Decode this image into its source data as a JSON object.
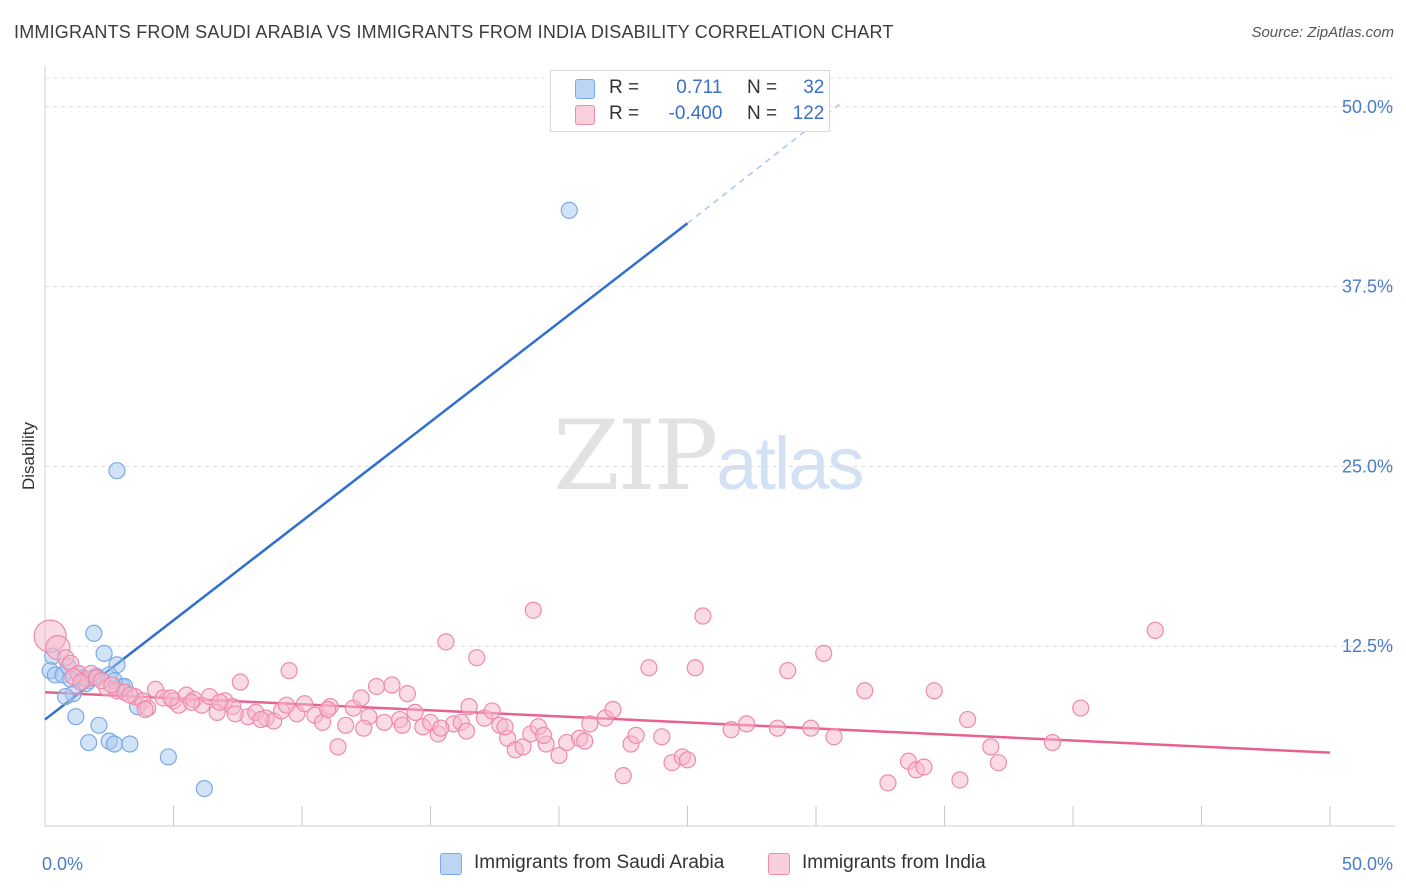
{
  "title": "IMMIGRANTS FROM SAUDI ARABIA VS IMMIGRANTS FROM INDIA DISABILITY CORRELATION CHART",
  "source": "Source: ZipAtlas.com",
  "watermark": {
    "zip": "ZIP",
    "atlas": "atlas"
  },
  "legend": {
    "rows": [
      {
        "r_label": "R =",
        "r_value": "0.711",
        "n_label": "N =",
        "n_value": "32",
        "color": "#a8c8f0"
      },
      {
        "r_label": "R =",
        "r_value": "-0.400",
        "n_label": "N =",
        "n_value": "122",
        "color": "#f6b8cb"
      }
    ]
  },
  "bottom_legend": {
    "saudi": "Immigrants from Saudi Arabia",
    "india": "Immigrants from India"
  },
  "chart_data": {
    "type": "scatter",
    "title": "IMMIGRANTS FROM SAUDI ARABIA VS IMMIGRANTS FROM INDIA DISABILITY CORRELATION CHART",
    "xlabel": "",
    "ylabel": "Disability",
    "xlim": [
      0,
      50
    ],
    "ylim": [
      0,
      52
    ],
    "x_tick_labels": [
      "0.0%",
      "50.0%"
    ],
    "y_ticks": [
      12.5,
      25.0,
      37.5,
      50.0
    ],
    "y_tick_labels": [
      "12.5%",
      "25.0%",
      "37.5%",
      "50.0%"
    ],
    "grid": true,
    "legend_position": "top-center",
    "series": [
      {
        "name": "Immigrants from Saudi Arabia",
        "color": "#7aaae6",
        "fill": "#a8c8f0",
        "line_color": "#2f6fcf",
        "r": 0.711,
        "n": 32,
        "trend": {
          "x0": 0,
          "y0": 7.4,
          "x1": 25,
          "y1": 41.9,
          "x_dash_end": 31,
          "y_dash_end": 50.3
        },
        "points": [
          [
            20.4,
            42.8
          ],
          [
            2.8,
            24.7
          ],
          [
            0.3,
            11.8
          ],
          [
            0.2,
            10.8
          ],
          [
            0.4,
            10.5
          ],
          [
            0.7,
            10.5
          ],
          [
            0.9,
            11.1
          ],
          [
            1.0,
            10.2
          ],
          [
            1.3,
            10.6
          ],
          [
            1.5,
            10.3
          ],
          [
            1.7,
            10.1
          ],
          [
            1.9,
            10.3
          ],
          [
            2.0,
            10.4
          ],
          [
            2.3,
            12.0
          ],
          [
            2.8,
            11.2
          ],
          [
            1.9,
            13.4
          ],
          [
            3.0,
            9.7
          ],
          [
            2.5,
            10.5
          ],
          [
            2.7,
            10.1
          ],
          [
            3.1,
            9.7
          ],
          [
            3.6,
            8.3
          ],
          [
            1.1,
            9.2
          ],
          [
            0.8,
            9.0
          ],
          [
            1.6,
            9.9
          ],
          [
            1.2,
            7.6
          ],
          [
            1.7,
            5.8
          ],
          [
            2.1,
            7.0
          ],
          [
            2.5,
            5.9
          ],
          [
            2.7,
            5.7
          ],
          [
            3.3,
            5.7
          ],
          [
            4.8,
            4.8
          ],
          [
            6.2,
            2.6
          ]
        ]
      },
      {
        "name": "Immigrants from India",
        "color": "#ee8aaa",
        "fill": "#f6b8cb",
        "line_color": "#e8628e",
        "r": -0.4,
        "n": 122,
        "trend": {
          "x0": 0,
          "y0": 9.3,
          "x1": 50,
          "y1": 5.1
        },
        "points": [
          [
            0.2,
            13.2
          ],
          [
            0.5,
            12.4
          ],
          [
            0.8,
            11.7
          ],
          [
            1.0,
            11.3
          ],
          [
            1.3,
            10.6
          ],
          [
            1.6,
            10.2
          ],
          [
            1.8,
            10.6
          ],
          [
            2.0,
            10.3
          ],
          [
            2.4,
            9.6
          ],
          [
            2.8,
            9.4
          ],
          [
            3.1,
            9.3
          ],
          [
            3.5,
            9.0
          ],
          [
            3.8,
            8.7
          ],
          [
            4.0,
            8.2
          ],
          [
            4.3,
            9.5
          ],
          [
            4.6,
            8.9
          ],
          [
            5.0,
            8.7
          ],
          [
            5.2,
            8.4
          ],
          [
            5.5,
            9.1
          ],
          [
            5.8,
            8.8
          ],
          [
            6.1,
            8.4
          ],
          [
            6.4,
            9.0
          ],
          [
            6.7,
            7.9
          ],
          [
            7.0,
            8.7
          ],
          [
            7.3,
            8.3
          ],
          [
            7.6,
            10.0
          ],
          [
            7.9,
            7.6
          ],
          [
            8.2,
            7.9
          ],
          [
            8.6,
            7.5
          ],
          [
            8.9,
            7.3
          ],
          [
            9.2,
            8.0
          ],
          [
            9.5,
            10.8
          ],
          [
            9.8,
            7.8
          ],
          [
            10.1,
            8.5
          ],
          [
            10.5,
            7.7
          ],
          [
            10.8,
            7.2
          ],
          [
            11.1,
            8.3
          ],
          [
            11.4,
            5.5
          ],
          [
            11.7,
            7.0
          ],
          [
            12.0,
            8.2
          ],
          [
            12.3,
            8.9
          ],
          [
            12.6,
            7.6
          ],
          [
            12.9,
            9.7
          ],
          [
            13.2,
            7.2
          ],
          [
            13.5,
            9.8
          ],
          [
            13.8,
            7.4
          ],
          [
            14.1,
            9.2
          ],
          [
            14.4,
            7.9
          ],
          [
            14.7,
            6.9
          ],
          [
            15.0,
            7.2
          ],
          [
            15.3,
            6.4
          ],
          [
            15.6,
            12.8
          ],
          [
            15.9,
            7.1
          ],
          [
            16.2,
            7.2
          ],
          [
            16.5,
            8.3
          ],
          [
            16.8,
            11.7
          ],
          [
            17.1,
            7.5
          ],
          [
            17.4,
            8.0
          ],
          [
            17.7,
            7.0
          ],
          [
            18.0,
            6.1
          ],
          [
            18.3,
            5.3
          ],
          [
            18.6,
            5.5
          ],
          [
            18.9,
            6.4
          ],
          [
            19.2,
            6.9
          ],
          [
            19.5,
            5.7
          ],
          [
            20.0,
            4.9
          ],
          [
            20.3,
            5.8
          ],
          [
            19.0,
            15.0
          ],
          [
            20.8,
            6.1
          ],
          [
            21.2,
            7.1
          ],
          [
            21.8,
            7.5
          ],
          [
            22.1,
            8.1
          ],
          [
            22.5,
            3.5
          ],
          [
            22.8,
            5.7
          ],
          [
            23.5,
            11.0
          ],
          [
            24.0,
            6.2
          ],
          [
            24.4,
            4.4
          ],
          [
            24.8,
            4.8
          ],
          [
            25.0,
            4.6
          ],
          [
            25.3,
            11.0
          ],
          [
            25.6,
            14.6
          ],
          [
            27.3,
            7.1
          ],
          [
            28.5,
            6.8
          ],
          [
            28.9,
            10.8
          ],
          [
            29.8,
            6.8
          ],
          [
            30.3,
            12.0
          ],
          [
            30.7,
            6.2
          ],
          [
            31.9,
            9.4
          ],
          [
            32.8,
            3.0
          ],
          [
            33.6,
            4.5
          ],
          [
            33.9,
            3.9
          ],
          [
            34.2,
            4.1
          ],
          [
            34.6,
            9.4
          ],
          [
            35.6,
            3.2
          ],
          [
            35.9,
            7.4
          ],
          [
            36.8,
            5.5
          ],
          [
            37.1,
            4.4
          ],
          [
            39.2,
            5.8
          ],
          [
            40.3,
            8.2
          ],
          [
            43.2,
            13.6
          ],
          [
            1.1,
            10.4
          ],
          [
            1.4,
            10.0
          ],
          [
            2.2,
            10.1
          ],
          [
            2.6,
            9.8
          ],
          [
            3.3,
            9.1
          ],
          [
            3.9,
            8.1
          ],
          [
            4.9,
            8.9
          ],
          [
            5.7,
            8.6
          ],
          [
            6.8,
            8.6
          ],
          [
            7.4,
            7.8
          ],
          [
            8.4,
            7.4
          ],
          [
            9.4,
            8.4
          ],
          [
            11.0,
            8.1
          ],
          [
            12.4,
            6.8
          ],
          [
            13.9,
            7.0
          ],
          [
            15.4,
            6.8
          ],
          [
            16.4,
            6.6
          ],
          [
            17.9,
            6.9
          ],
          [
            19.4,
            6.3
          ],
          [
            21.0,
            5.9
          ],
          [
            23.0,
            6.3
          ],
          [
            26.7,
            6.7
          ]
        ]
      }
    ]
  }
}
